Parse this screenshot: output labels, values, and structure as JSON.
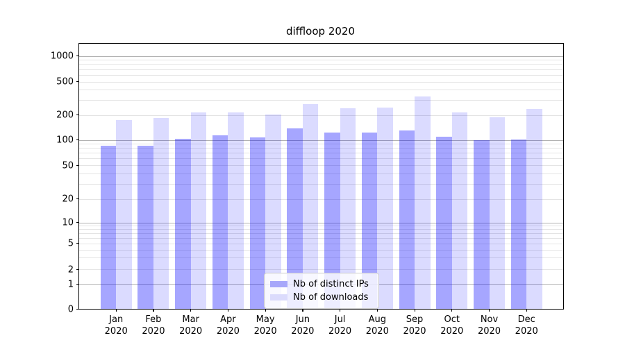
{
  "title": "diffloop 2020",
  "chart_data": {
    "type": "bar",
    "title": "diffloop 2020",
    "categories": [
      "Jan 2020",
      "Feb 2020",
      "Mar 2020",
      "Apr 2020",
      "May 2020",
      "Jun 2020",
      "Jul 2020",
      "Aug 2020",
      "Sep 2020",
      "Oct 2020",
      "Nov 2020",
      "Dec 2020"
    ],
    "months": [
      "Jan",
      "Feb",
      "Mar",
      "Apr",
      "May",
      "Jun",
      "Jul",
      "Aug",
      "Sep",
      "Oct",
      "Nov",
      "Dec"
    ],
    "year": "2020",
    "series": [
      {
        "name": "Nb of distinct IPs",
        "color": "rgba(0,0,255,0.35)",
        "color_hex": "#a7a7fa",
        "values": [
          86,
          85,
          104,
          113,
          108,
          139,
          123,
          124,
          130,
          109,
          100,
          101
        ]
      },
      {
        "name": "Nb of downloads",
        "color": "rgba(0,0,255,0.14)",
        "color_hex": "#dbdbfc",
        "values": [
          175,
          186,
          215,
          213,
          203,
          270,
          240,
          245,
          330,
          213,
          188,
          238
        ]
      }
    ],
    "xlabel": "",
    "ylabel": "",
    "y_ticks": [
      0,
      1,
      2,
      5,
      10,
      20,
      50,
      100,
      200,
      500,
      1000
    ],
    "y_scale": "symlog",
    "ylim": [
      0,
      1380
    ],
    "grid": true,
    "grid_major_color": "#b2b2b2",
    "grid_minor_color": "#e4e4e4",
    "legend_position": "inside-bottom-center"
  }
}
